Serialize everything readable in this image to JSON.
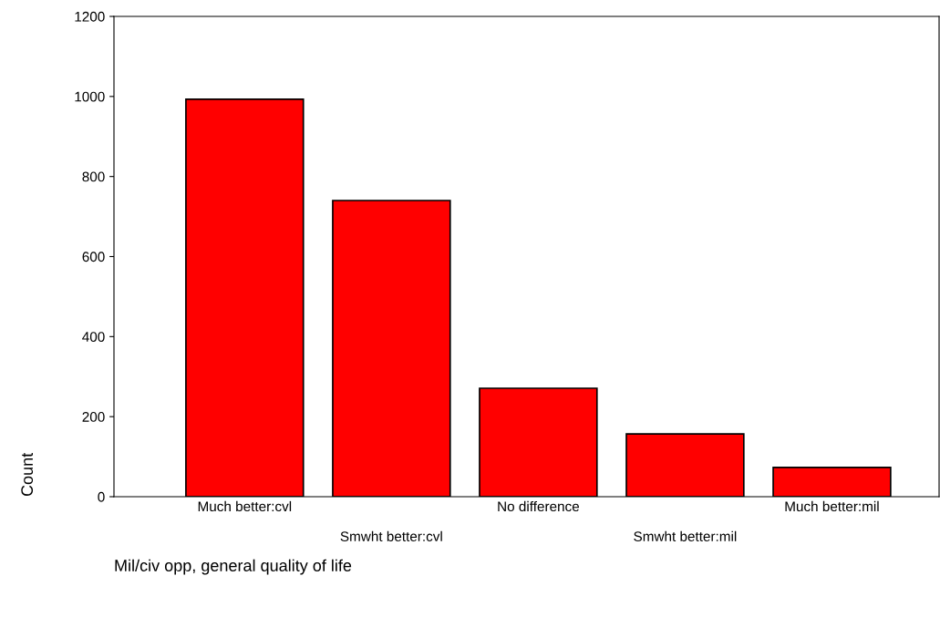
{
  "chart_data": {
    "type": "bar",
    "xlabel": "Mil/civ opp, general quality of life",
    "ylabel": "Count",
    "categories": [
      "Much better:cvl",
      "Smwht better:cvl",
      "No difference",
      "Smwht better:mil",
      "Much better:mil"
    ],
    "values": [
      993,
      740,
      271,
      157,
      73
    ],
    "color": "#ff0000",
    "ylim": [
      0,
      1200
    ],
    "yticks": [
      0,
      200,
      400,
      600,
      800,
      1000,
      1200
    ],
    "grid": false,
    "legend": false
  }
}
